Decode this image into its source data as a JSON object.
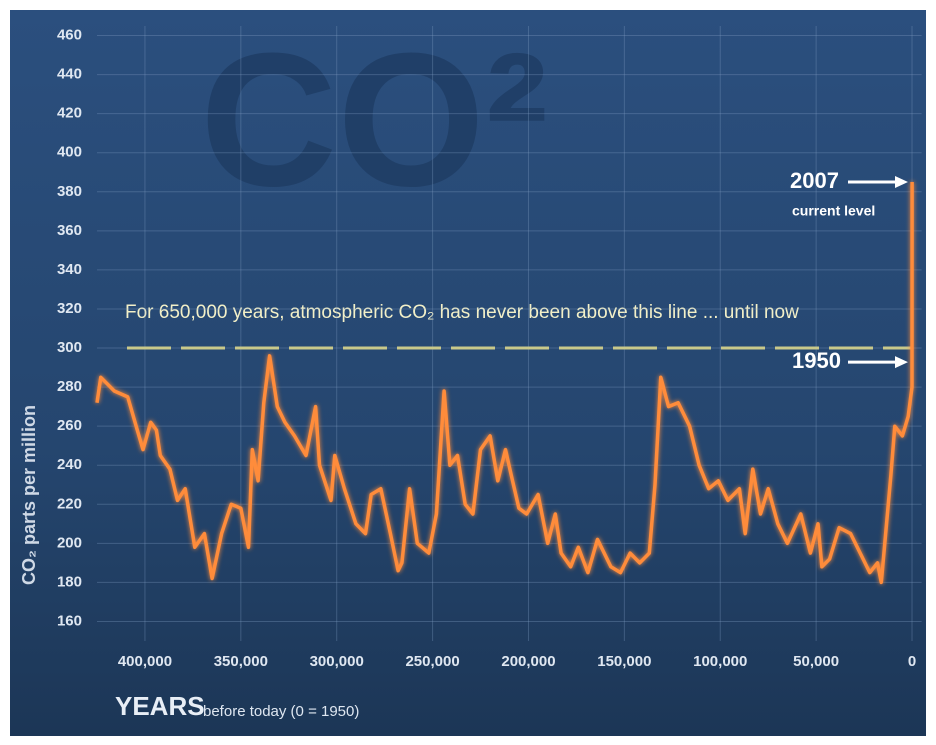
{
  "chart_data": {
    "type": "line",
    "watermark": "CO²",
    "title": "For 650,000 years, atmospheric CO₂ has never been above this line ... until now",
    "y_label": "CO₂ parts per million",
    "x_label": "YEARS",
    "x_sublabel": "before today (0 = 1950)",
    "threshold": 300,
    "threshold_color": "#c9c98a",
    "annotations": [
      {
        "label": "2007",
        "sublabel": "current level"
      },
      {
        "label": "1950"
      }
    ],
    "x": [
      425000,
      423000,
      416000,
      409000,
      404000,
      401000,
      397000,
      394000,
      392000,
      387000,
      383000,
      379000,
      374000,
      369000,
      365000,
      360000,
      355000,
      350000,
      346000,
      344000,
      341000,
      338000,
      335000,
      331000,
      327000,
      322000,
      316000,
      311000,
      309000,
      303000,
      301000,
      296000,
      290000,
      285000,
      282000,
      277000,
      272000,
      268000,
      266000,
      262000,
      258000,
      252000,
      248000,
      244000,
      241000,
      237000,
      233000,
      229000,
      225000,
      220000,
      216000,
      212000,
      209000,
      205000,
      201000,
      195000,
      190000,
      186000,
      183000,
      178000,
      174000,
      169000,
      164000,
      157000,
      152000,
      147000,
      142000,
      137000,
      134000,
      131000,
      127000,
      122000,
      116000,
      111000,
      106000,
      101000,
      96000,
      90000,
      87000,
      83000,
      79000,
      75000,
      70000,
      65000,
      58000,
      53000,
      49000,
      47000,
      43000,
      38000,
      32000,
      27000,
      22000,
      18000,
      16000,
      11000,
      9000,
      5000,
      2000,
      0,
      -57
    ],
    "series": [
      {
        "name": "CO₂",
        "color": "#ff8c3a",
        "values": [
          272,
          285,
          278,
          275,
          258,
          248,
          262,
          258,
          245,
          238,
          222,
          228,
          198,
          205,
          182,
          205,
          220,
          218,
          198,
          248,
          232,
          272,
          296,
          270,
          262,
          255,
          245,
          270,
          240,
          222,
          245,
          228,
          210,
          205,
          225,
          228,
          205,
          186,
          190,
          228,
          200,
          195,
          215,
          278,
          240,
          245,
          220,
          215,
          248,
          255,
          232,
          248,
          235,
          218,
          215,
          225,
          200,
          215,
          195,
          188,
          198,
          185,
          202,
          188,
          185,
          195,
          190,
          195,
          230,
          285,
          270,
          272,
          260,
          240,
          228,
          232,
          222,
          228,
          205,
          238,
          215,
          228,
          210,
          200,
          215,
          195,
          210,
          188,
          192,
          208,
          205,
          195,
          185,
          190,
          180,
          235,
          260,
          255,
          265,
          280,
          385
        ]
      }
    ],
    "xlim": [
      425000,
      -5000
    ],
    "ylim": [
      150,
      470
    ],
    "xticks": [
      {
        "value": 400000,
        "label": "400,000"
      },
      {
        "value": 350000,
        "label": "350,000"
      },
      {
        "value": 300000,
        "label": "300,000"
      },
      {
        "value": 250000,
        "label": "250,000"
      },
      {
        "value": 200000,
        "label": "200,000"
      },
      {
        "value": 150000,
        "label": "150,000"
      },
      {
        "value": 100000,
        "label": "100,000"
      },
      {
        "value": 50000,
        "label": "50,000"
      },
      0
    ],
    "yticks": [
      160,
      180,
      200,
      220,
      240,
      260,
      280,
      300,
      320,
      340,
      360,
      380,
      400,
      420,
      440,
      460
    ],
    "grid": true
  }
}
